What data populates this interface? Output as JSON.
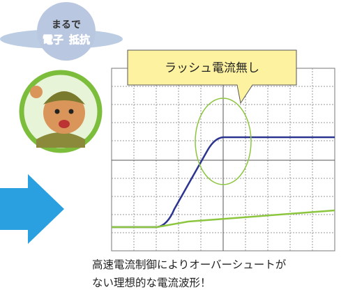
{
  "badge": {
    "line1": "まるで",
    "line2a": "電子",
    "line2b": "抵抗"
  },
  "callout": {
    "text": "ラッシュ電流無し"
  },
  "caption": {
    "line1": "高速電流制御によりオーバーシュートが",
    "line2": "ない理想的な電流波形！"
  }
}
